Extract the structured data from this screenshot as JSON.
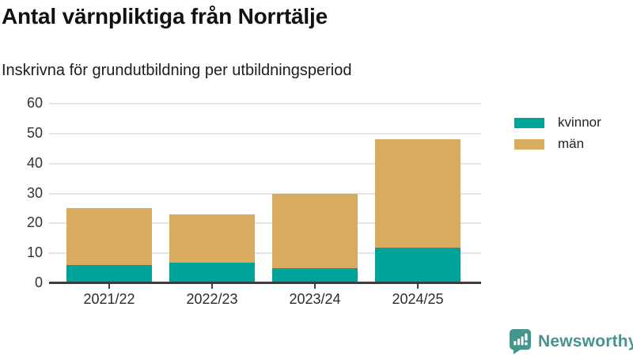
{
  "header": {
    "title": "Antal värnpliktiga från Norrtälje",
    "subtitle": "Inskrivna för grundutbildning per utbildningsperiod"
  },
  "chart_data": {
    "type": "bar",
    "stacked": true,
    "title": "Antal värnpliktiga från Norrtälje",
    "subtitle": "Inskrivna för grundutbildning per utbildningsperiod",
    "categories": [
      "2021/22",
      "2022/23",
      "2023/24",
      "2024/25"
    ],
    "series": [
      {
        "name": "kvinnor",
        "color": "#00a39a",
        "values": [
          6,
          7,
          5,
          12
        ]
      },
      {
        "name": "män",
        "color": "#d8ab5e",
        "values": [
          19,
          16,
          25,
          36
        ]
      }
    ],
    "totals": [
      25,
      23,
      30,
      48
    ],
    "xlabel": "",
    "ylabel": "",
    "ylim": [
      0,
      60
    ],
    "yticks": [
      0,
      10,
      20,
      30,
      40,
      50,
      60
    ],
    "grid": true,
    "legend_position": "right-top",
    "colors": {
      "grid": "#e4e4e4",
      "axis": "#3d3d3d",
      "tick_text": "#333333"
    }
  },
  "footer": {
    "brand": "Newsworthy",
    "logo_icon": "bar-chart-speech-bubble-icon",
    "brand_color": "#45948d"
  }
}
